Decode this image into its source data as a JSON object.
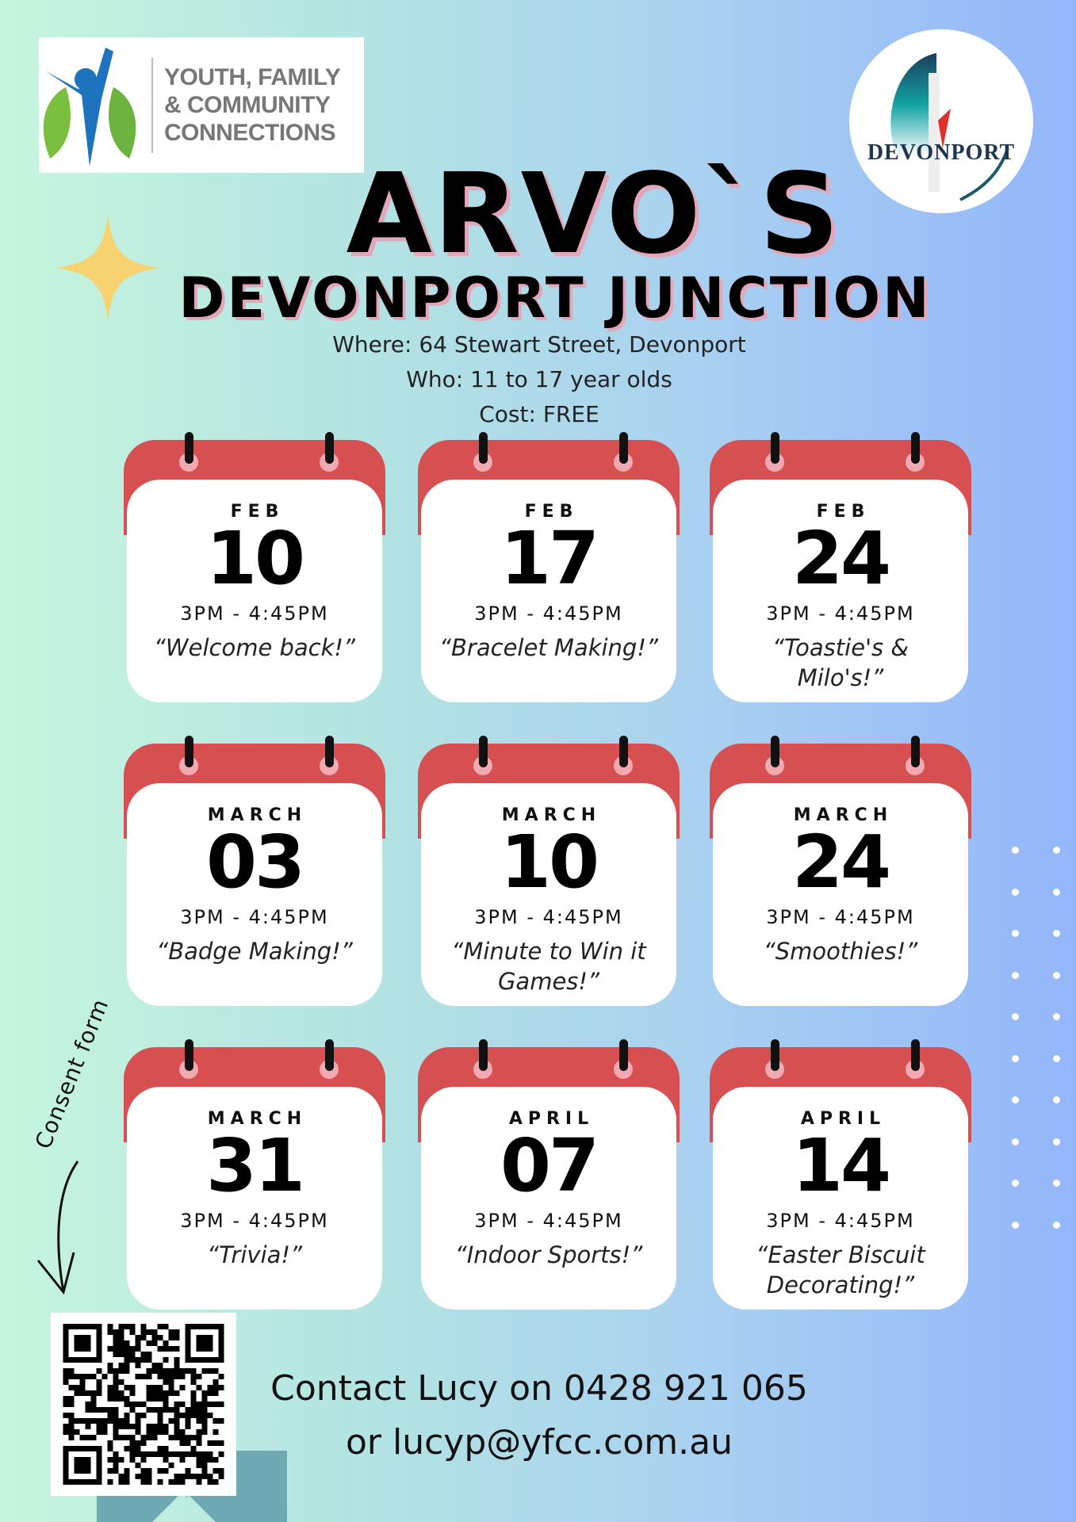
{
  "logos": {
    "yfcc": {
      "lines": [
        "YOUTH, FAMILY",
        "& COMMUNITY",
        "CONNECTIONS"
      ]
    },
    "devonport": {
      "text": "DEVONPORT"
    }
  },
  "title": "ARVO`S",
  "subtitle": "DEVONPORT JUNCTION",
  "info": {
    "where": "Where: 64 Stewart Street, Devonport",
    "who": "Who: 11 to 17 year olds",
    "cost": "Cost: FREE"
  },
  "events": [
    {
      "month": "FEB",
      "day": "10",
      "time": "3PM - 4:45PM",
      "desc": "“Welcome back!”"
    },
    {
      "month": "FEB",
      "day": "17",
      "time": "3PM - 4:45PM",
      "desc": "“Bracelet Making!”"
    },
    {
      "month": "FEB",
      "day": "24",
      "time": "3PM - 4:45PM",
      "desc": "“Toastie's & Milo's!”"
    },
    {
      "month": "MARCH",
      "day": "03",
      "time": "3PM - 4:45PM",
      "desc": "“Badge Making!”"
    },
    {
      "month": "MARCH",
      "day": "10",
      "time": "3PM - 4:45PM",
      "desc": "“Minute to Win it Games!”"
    },
    {
      "month": "MARCH",
      "day": "24",
      "time": "3PM - 4:45PM",
      "desc": "“Smoothies!”"
    },
    {
      "month": "MARCH",
      "day": "31",
      "time": "3PM - 4:45PM",
      "desc": "“Trivia!”"
    },
    {
      "month": "APRIL",
      "day": "07",
      "time": "3PM - 4:45PM",
      "desc": "“Indoor Sports!”"
    },
    {
      "month": "APRIL",
      "day": "14",
      "time": "3PM - 4:45PM",
      "desc": "“Easter Biscuit Decorating!”"
    }
  ],
  "consent_label": "Consent form",
  "contact": {
    "line1": "Contact Lucy on 0428 921 065",
    "line2": "or lucyp@yfcc.com.au"
  },
  "colors": {
    "calendar_red": "#d65051",
    "ring_pink": "#f2a9b1",
    "star": "#f7d271",
    "teal": "#6fa9b3"
  }
}
